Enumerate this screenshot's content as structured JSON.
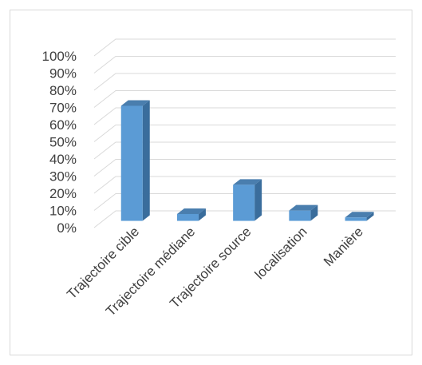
{
  "chart_data": {
    "type": "bar",
    "style": "3d-column",
    "categories": [
      "Trajectoire cible",
      "Trajectoire médiane",
      "Trajectoire source",
      "localisation",
      "Manière"
    ],
    "values": [
      67,
      4,
      21,
      6,
      2
    ],
    "ylim": [
      0,
      100
    ],
    "ytick_step": 10,
    "ytick_suffix": "%",
    "grid": true,
    "legend": "none",
    "colors": {
      "bar_front": "#5b9bd5",
      "bar_side": "#3a6d9c",
      "bar_top": "#4a7eae",
      "grid": "#d9d9d9",
      "text": "#404040"
    }
  }
}
